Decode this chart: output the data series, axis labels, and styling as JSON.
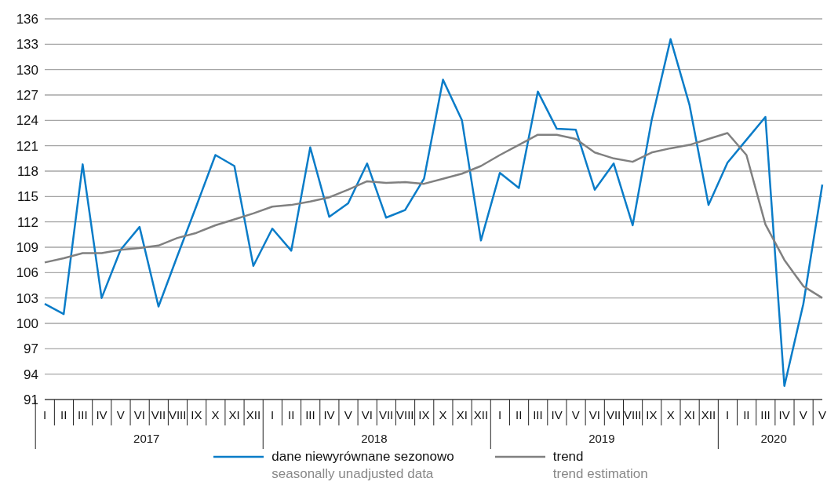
{
  "chart_data": {
    "type": "line",
    "categories": [
      "I",
      "II",
      "III",
      "IV",
      "V",
      "VI",
      "VII",
      "VIII",
      "IX",
      "X",
      "XI",
      "XII",
      "I",
      "II",
      "III",
      "IV",
      "V",
      "VI",
      "VII",
      "VIII",
      "IX",
      "X",
      "XI",
      "XII",
      "I",
      "II",
      "III",
      "IV",
      "V",
      "VI",
      "VII",
      "VIII",
      "IX",
      "X",
      "XI",
      "XII",
      "I",
      "II",
      "III",
      "IV",
      "V",
      "V"
    ],
    "series": [
      {
        "name": "dane niewyrównane sezonowo\nseasonally unadjusted data",
        "color": "#0a7cc8",
        "values": [
          102.3,
          101.1,
          118.8,
          103.0,
          108.7,
          111.4,
          102.0,
          108.0,
          113.9,
          119.9,
          118.6,
          106.8,
          111.2,
          108.6,
          120.8,
          112.6,
          114.2,
          118.9,
          112.5,
          113.4,
          117.1,
          128.8,
          124.0,
          109.8,
          117.8,
          116.0,
          127.4,
          123.0,
          122.9,
          115.8,
          118.9,
          111.6,
          124.0,
          133.6,
          125.8,
          114.0,
          119.0,
          121.7,
          124.4,
          92.6,
          102.3,
          116.4
        ]
      },
      {
        "name": "trend\ntrend estimation",
        "color": "#808080",
        "values": [
          107.2,
          107.7,
          108.3,
          108.3,
          108.7,
          108.9,
          109.2,
          110.1,
          110.7,
          111.6,
          112.3,
          113.0,
          113.8,
          114.0,
          114.4,
          114.9,
          115.8,
          116.8,
          116.6,
          116.7,
          116.5,
          117.1,
          117.7,
          118.6,
          119.9,
          121.1,
          122.3,
          122.3,
          121.8,
          120.2,
          119.5,
          119.1,
          120.2,
          120.7,
          121.1,
          121.8,
          122.5,
          119.9,
          111.7,
          107.5,
          104.4,
          103.0
        ]
      }
    ],
    "ylim": [
      91,
      136
    ],
    "yticks": [
      91,
      94,
      97,
      100,
      103,
      106,
      109,
      112,
      115,
      118,
      121,
      124,
      127,
      130,
      133,
      136
    ],
    "grid": "y",
    "legend": "bottom",
    "marker": "none",
    "line_style": "solid",
    "annotations": [
      "2017",
      "2018",
      "2019",
      "2020"
    ]
  }
}
